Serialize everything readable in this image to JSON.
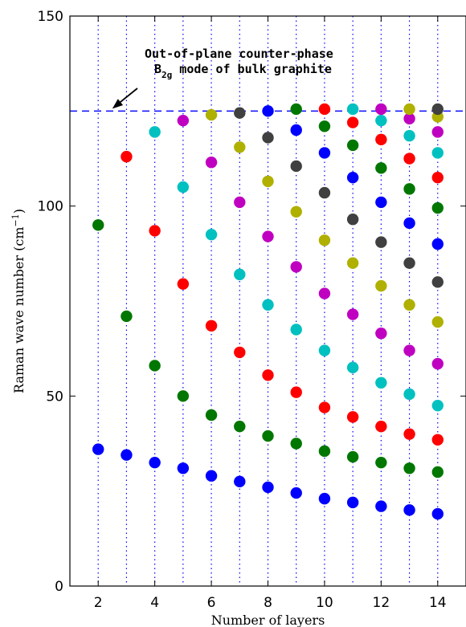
{
  "chart_data": {
    "type": "scatter",
    "xlabel": "Number of layers",
    "ylabel": "Raman wave number (cm",
    "ylabel_sup": "−1",
    "ylabel_close": ")",
    "xlim": [
      1,
      15
    ],
    "ylim": [
      0,
      150
    ],
    "x_ticks": [
      "2",
      "4",
      "6",
      "8",
      "10",
      "12",
      "14"
    ],
    "y_ticks": [
      "0",
      "50",
      "100",
      "150"
    ],
    "grid": "vertical dotted lines at each integer layer number",
    "reference_line": {
      "y": 125,
      "style": "dashed"
    },
    "annotation": {
      "line1": "Out-of-plane counter-phase",
      "line2_prefix": "B",
      "line2_sub": "2g",
      "line2_suffix": " mode of bulk graphite"
    },
    "colors": {
      "blue": "#0000ff",
      "green": "#007700",
      "red": "#ff0000",
      "cyan": "#00c0c0",
      "magenta": "#c000c0",
      "olive": "#b0b000",
      "dark": "#404040",
      "reference_line": "#0000ff",
      "grid": "#0000ff"
    },
    "color_cycle": [
      "blue",
      "green",
      "red",
      "cyan",
      "magenta",
      "olive",
      "dark"
    ],
    "series": [
      {
        "x": 2,
        "y": [
          36,
          95
        ]
      },
      {
        "x": 3,
        "y": [
          34.5,
          71,
          113
        ]
      },
      {
        "x": 4,
        "y": [
          32.5,
          58,
          93.5,
          119.5
        ]
      },
      {
        "x": 5,
        "y": [
          31,
          50,
          79.5,
          105,
          122.5
        ]
      },
      {
        "x": 6,
        "y": [
          29,
          45,
          68.5,
          92.5,
          111.5,
          124
        ]
      },
      {
        "x": 7,
        "y": [
          27.5,
          42,
          61.5,
          82,
          101,
          115.5,
          124.5
        ]
      },
      {
        "x": 8,
        "y": [
          26,
          39.5,
          55.5,
          74,
          92,
          106.5,
          118,
          125
        ]
      },
      {
        "x": 9,
        "y": [
          24.5,
          37.5,
          51,
          67.5,
          84,
          98.5,
          110.5,
          120,
          125.5
        ]
      },
      {
        "x": 10,
        "y": [
          23,
          35.5,
          47,
          62,
          77,
          91,
          103.5,
          114,
          121,
          125.5
        ]
      },
      {
        "x": 11,
        "y": [
          22,
          34,
          44.5,
          57.5,
          71.5,
          85,
          96.5,
          107.5,
          116,
          122,
          125.5
        ]
      },
      {
        "x": 12,
        "y": [
          21,
          32.5,
          42,
          53.5,
          66.5,
          79,
          90.5,
          101,
          110,
          117.5,
          122.5,
          125.5
        ]
      },
      {
        "x": 13,
        "y": [
          20,
          31,
          40,
          50.5,
          62,
          74,
          85,
          95.5,
          104.5,
          112.5,
          118.5,
          123,
          125.5
        ]
      },
      {
        "x": 14,
        "y": [
          19,
          30,
          38.5,
          47.5,
          58.5,
          69.5,
          80,
          90,
          99.5,
          107.5,
          114,
          119.5,
          123.5,
          125.5
        ]
      }
    ]
  }
}
